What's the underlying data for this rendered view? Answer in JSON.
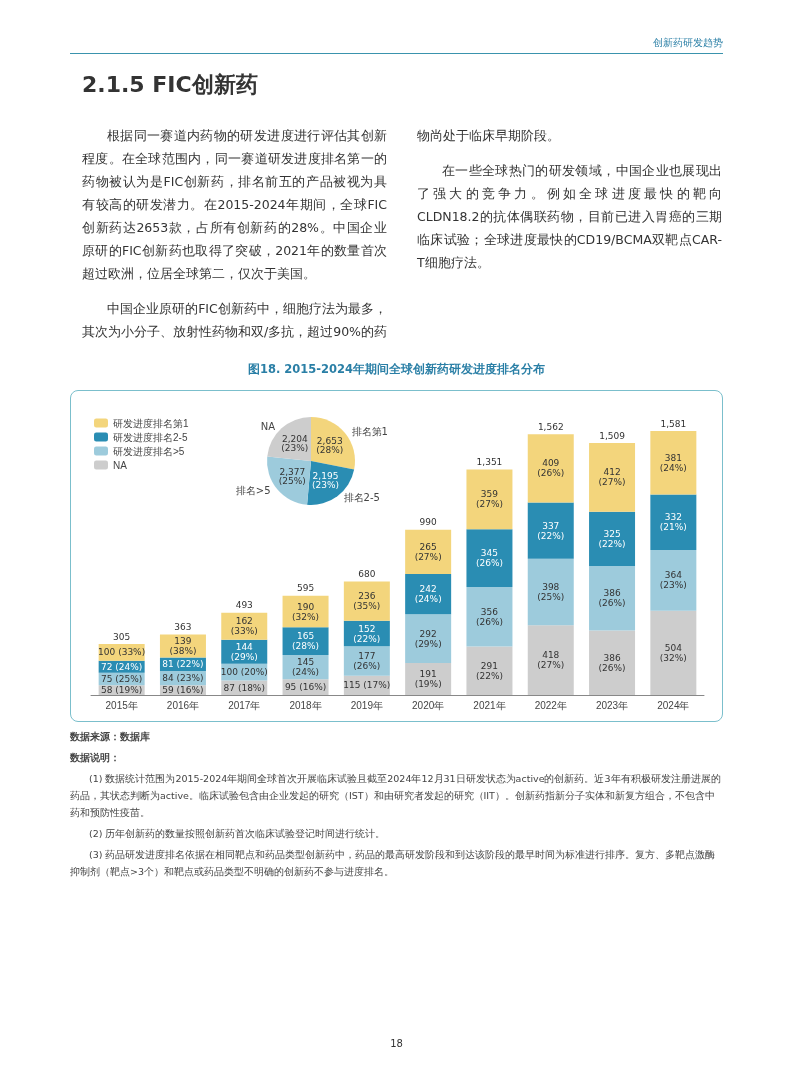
{
  "chart_data": [
    {
      "type": "other",
      "title": "2.1.5 FIC创新药",
      "annotations": [
        "创新药研发趋势",
        "根据同一赛道内药物的研发进度进行评估其创新程度。在全球范围内，同一赛道研发进度排名第一的药物被认为是FIC创新药，排名前五的产品被视为具有较高的研发潜力。在2015-2024年期间，全球FIC创新药达2653款，占所有创新药的28%。中国企业原研的FIC创新药也取得了突破，2021年的数量首次超过欧洲，位居全球第二，仅次于美国。",
        "中国企业原研的FIC创新药中，细胞疗法为最多，其次为小分子、放射性药物和双/多抗，超过90%的药物尚处于临床早期阶段。",
        "在一些全球热门的研发领域，中国企业也展现出了强大的竞争力。例如全球进度最快的靶向CLDN18.2的抗体偶联药物，目前已进入胃癌的三期临床试验；全球进度最快的CD19/BCMA双靶点CAR-T细胞疗法。",
        "18"
      ]
    },
    {
      "type": "pie",
      "categories": [
        "排名第1",
        "排名2-5",
        "排名>5",
        "NA"
      ],
      "values": [
        2653,
        2195,
        2377,
        2204
      ],
      "colors": [
        "#f3d57c",
        "#2a8db3",
        "#9dcbdc",
        "#cdcdcd"
      ],
      "value_labels": [
        "2,653 (28%)",
        "2,195 (23%)",
        "2,377 (25%)",
        "2,204 (23%)"
      ]
    },
    {
      "type": "bar",
      "title": "图18. 2015-2024年期间全球创新药研发进度排名分布",
      "stacked": true,
      "legend": "top left",
      "tick_labels": "x",
      "categories": [
        "2015年",
        "2016年",
        "2017年",
        "2018年",
        "2019年",
        "2020年",
        "2021年",
        "2022年",
        "2023年",
        "2024年"
      ],
      "series": [
        {
          "name": "NA",
          "color": "#cdcdcd",
          "values": [
            58,
            59,
            87,
            95,
            115,
            191,
            291,
            418,
            386,
            504
          ],
          "value_labels": [
            "58 (19%)",
            "59 (16%)",
            "87 (18%)",
            "95 (16%)",
            "115 (17%)",
            "191 (19%)",
            "291 (22%)",
            "418 (27%)",
            "386 (26%)",
            "504 (32%)"
          ]
        },
        {
          "name": "研发进度排名>5",
          "color": "#9dcbdc",
          "values": [
            75,
            84,
            100,
            145,
            177,
            292,
            356,
            398,
            386,
            364
          ],
          "value_labels": [
            "75 (25%)",
            "84 (23%)",
            "100 (20%)",
            "145 (24%)",
            "177 (26%)",
            "292 (29%)",
            "356 (26%)",
            "398 (25%)",
            "386 (26%)",
            "364 (23%)"
          ]
        },
        {
          "name": "研发进度排名2-5",
          "color": "#2a8db3",
          "values": [
            72,
            81,
            144,
            165,
            152,
            242,
            345,
            337,
            325,
            332
          ],
          "value_labels": [
            "72 (24%)",
            "81 (22%)",
            "144 (29%)",
            "165 (28%)",
            "152 (22%)",
            "242 (24%)",
            "345 (26%)",
            "337 (22%)",
            "325 (22%)",
            "332 (21%)"
          ]
        },
        {
          "name": "研发进度排名第1",
          "color": "#f3d57c",
          "values": [
            100,
            139,
            162,
            190,
            236,
            265,
            359,
            409,
            412,
            381
          ],
          "value_labels": [
            "100 (33%)",
            "139 (38%)",
            "162 (33%)",
            "190 (32%)",
            "236 (35%)",
            "265 (27%)",
            "359 (27%)",
            "409 (26%)",
            "412 (27%)",
            "381 (24%)"
          ]
        }
      ],
      "totals": [
        "305",
        "363",
        "493",
        "595",
        "680",
        "990",
        "1,351",
        "1,562",
        "1,509",
        "1,581"
      ],
      "annotations": [
        "数据来源：数据库",
        "数据说明：",
        "(1) 数据统计范围为2015-2024年期间全球首次开展临床试验且截至2024年12月31日研发状态为active的创新药。近3年有积极研发注册进展的药品，其状态判断为active。临床试验包含由企业发起的研究（IST）和由研究者发起的研究（IIT）。创新药指新分子实体和新复方组合，不包含中药和预防性疫苗。",
        "(2) 历年创新药的数量按照创新药首次临床试验登记时间进行统计。",
        "(3) 药品研发进度排名依据在相同靶点和药品类型创新药中，药品的最高研发阶段和到达该阶段的最早时间为标准进行排序。复方、多靶点激酶抑制剂（靶点>3个）和靶点或药品类型不明确的创新药不参与进度排名。"
      ]
    }
  ]
}
